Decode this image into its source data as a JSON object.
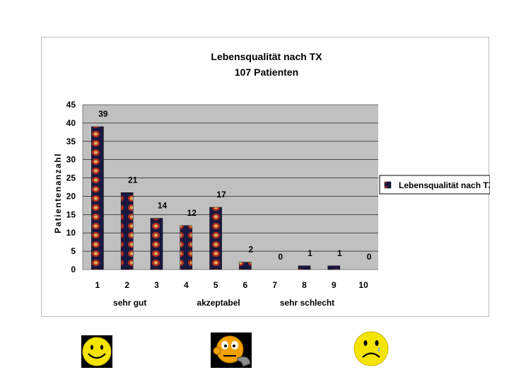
{
  "chart_data": {
    "type": "bar",
    "title": "Lebensqualität nach TX",
    "subtitle": "107 Patienten",
    "ylabel": "Patientenanzahl",
    "xlabel": "",
    "categories": [
      "1",
      "2",
      "3",
      "4",
      "5",
      "6",
      "7",
      "8",
      "9",
      "10"
    ],
    "series": [
      {
        "name": "Lebensqualität nach TX",
        "values": [
          39,
          21,
          14,
          12,
          17,
          2,
          0,
          1,
          1,
          0
        ]
      }
    ],
    "ylim": [
      0,
      45
    ],
    "yticks": [
      0,
      5,
      10,
      15,
      20,
      25,
      30,
      35,
      40,
      45
    ],
    "grid": true,
    "legend": "right",
    "category_groups": [
      {
        "label": "sehr gut",
        "under": "2"
      },
      {
        "label": "akzeptabel",
        "under": "5"
      },
      {
        "label": "sehr schlecht",
        "under": "8"
      }
    ],
    "colors": {
      "plot_bg": "#c0c0c0",
      "bar_fill": "#1a1840",
      "bar_pattern": "#b03020",
      "grid": "#000000"
    }
  },
  "faces": [
    {
      "name": "happy-face-icon",
      "mood": "happy"
    },
    {
      "name": "neutral-face-icon",
      "mood": "neutral"
    },
    {
      "name": "sad-face-icon",
      "mood": "sad"
    }
  ]
}
